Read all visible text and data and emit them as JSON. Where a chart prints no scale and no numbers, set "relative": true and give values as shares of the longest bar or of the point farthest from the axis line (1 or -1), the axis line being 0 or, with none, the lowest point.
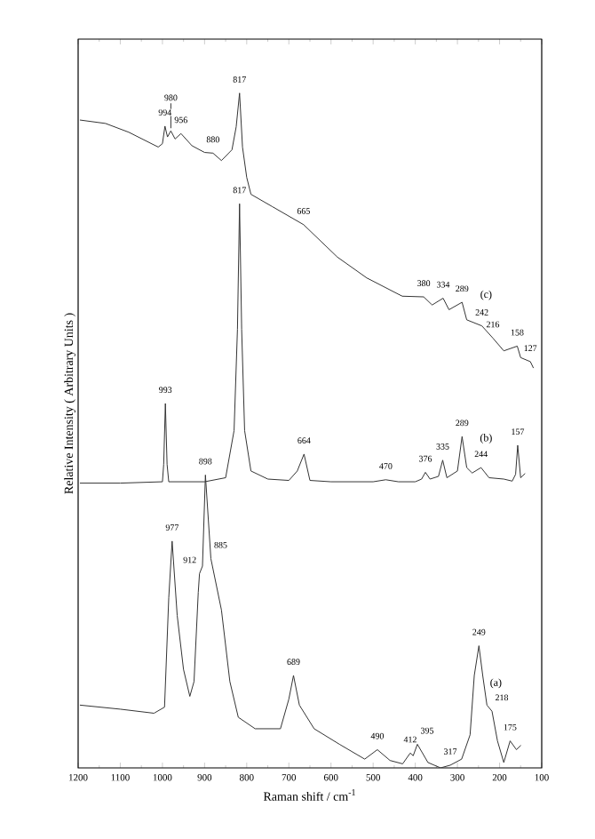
{
  "chart_data": {
    "type": "line",
    "relative": true,
    "xlabel": "Raman shift / cm$^{-1}$",
    "ylabel": "Relative Intensity ( Arbitrary Units )",
    "xlim": [
      1200,
      100
    ],
    "xticks": [
      1200,
      1100,
      1000,
      900,
      800,
      700,
      600,
      500,
      400,
      300,
      200,
      100
    ],
    "series": [
      {
        "name": "(c)",
        "color": "#333333",
        "x": [
          1195,
          1135,
          1080,
          1010,
          1000,
          994,
          988,
          980,
          970,
          956,
          930,
          900,
          880,
          860,
          835,
          825,
          817,
          810,
          800,
          790,
          740,
          665,
          585,
          515,
          431,
          380,
          360,
          334,
          320,
          289,
          278,
          242,
          216,
          190,
          158,
          150,
          127,
          120
        ],
        "values": [
          0.96,
          0.955,
          0.942,
          0.92,
          0.925,
          0.951,
          0.935,
          0.944,
          0.932,
          0.94,
          0.922,
          0.912,
          0.911,
          0.9,
          0.916,
          0.95,
          1.0,
          0.92,
          0.875,
          0.85,
          0.832,
          0.805,
          0.757,
          0.726,
          0.699,
          0.698,
          0.686,
          0.696,
          0.679,
          0.69,
          0.664,
          0.655,
          0.637,
          0.618,
          0.625,
          0.608,
          0.602,
          0.593
        ]
      },
      {
        "name": "(b)",
        "color": "#333333",
        "x": [
          1195,
          1100,
          1000,
          997,
          993,
          989,
          985,
          900,
          850,
          830,
          822,
          817,
          812,
          805,
          790,
          750,
          700,
          680,
          664,
          650,
          600,
          500,
          470,
          440,
          400,
          385,
          376,
          365,
          345,
          335,
          325,
          300,
          289,
          278,
          265,
          244,
          225,
          190,
          170,
          162,
          157,
          150,
          140
        ],
        "values": [
          0.422,
          0.422,
          0.424,
          0.45,
          0.54,
          0.45,
          0.424,
          0.424,
          0.43,
          0.5,
          0.65,
          0.836,
          0.65,
          0.5,
          0.44,
          0.428,
          0.426,
          0.44,
          0.465,
          0.426,
          0.424,
          0.424,
          0.427,
          0.424,
          0.424,
          0.428,
          0.438,
          0.428,
          0.432,
          0.456,
          0.43,
          0.44,
          0.491,
          0.445,
          0.437,
          0.445,
          0.43,
          0.428,
          0.425,
          0.435,
          0.478,
          0.43,
          0.436
        ]
      },
      {
        "name": "(a)",
        "color": "#333333",
        "x": [
          1195,
          1100,
          1020,
          995,
          985,
          977,
          965,
          950,
          935,
          925,
          915,
          912,
          905,
          898,
          885,
          860,
          840,
          820,
          780,
          720,
          700,
          689,
          675,
          640,
          580,
          520,
          490,
          460,
          430,
          412,
          405,
          395,
          370,
          340,
          317,
          290,
          270,
          260,
          249,
          240,
          230,
          218,
          205,
          190,
          175,
          160,
          150
        ],
        "values": [
          0.093,
          0.087,
          0.081,
          0.09,
          0.252,
          0.336,
          0.226,
          0.146,
          0.106,
          0.128,
          0.26,
          0.288,
          0.299,
          0.434,
          0.31,
          0.234,
          0.128,
          0.075,
          0.058,
          0.058,
          0.102,
          0.137,
          0.093,
          0.058,
          0.035,
          0.013,
          0.027,
          0.011,
          0.006,
          0.022,
          0.018,
          0.035,
          0.008,
          0.0,
          0.004,
          0.013,
          0.049,
          0.137,
          0.181,
          0.137,
          0.093,
          0.084,
          0.04,
          0.008,
          0.04,
          0.027,
          0.033
        ]
      }
    ],
    "annotations": [
      {
        "text": "994",
        "x": 994,
        "y": 0.951
      },
      {
        "text": "980",
        "x": 980,
        "y": 0.944
      },
      {
        "text": "956",
        "x": 956,
        "y": 0.94
      },
      {
        "text": "880",
        "x": 880,
        "y": 0.911
      },
      {
        "text": "817",
        "x": 817,
        "y": 1.0
      },
      {
        "text": "665",
        "x": 665,
        "y": 0.805
      },
      {
        "text": "380",
        "x": 380,
        "y": 0.698
      },
      {
        "text": "334",
        "x": 334,
        "y": 0.696
      },
      {
        "text": "289",
        "x": 289,
        "y": 0.69
      },
      {
        "text": "242",
        "x": 242,
        "y": 0.655
      },
      {
        "text": "216",
        "x": 216,
        "y": 0.637
      },
      {
        "text": "158",
        "x": 158,
        "y": 0.625
      },
      {
        "text": "127",
        "x": 127,
        "y": 0.602
      },
      {
        "text": "993",
        "x": 993,
        "y": 0.54
      },
      {
        "text": "817",
        "x": 817,
        "y": 0.836
      },
      {
        "text": "664",
        "x": 664,
        "y": 0.465
      },
      {
        "text": "470",
        "x": 470,
        "y": 0.427
      },
      {
        "text": "376",
        "x": 376,
        "y": 0.438
      },
      {
        "text": "335",
        "x": 335,
        "y": 0.456
      },
      {
        "text": "289",
        "x": 289,
        "y": 0.491
      },
      {
        "text": "244",
        "x": 244,
        "y": 0.445
      },
      {
        "text": "157",
        "x": 157,
        "y": 0.478
      },
      {
        "text": "977",
        "x": 977,
        "y": 0.336
      },
      {
        "text": "912",
        "x": 912,
        "y": 0.288
      },
      {
        "text": "898",
        "x": 898,
        "y": 0.434
      },
      {
        "text": "885",
        "x": 885,
        "y": 0.31
      },
      {
        "text": "689",
        "x": 689,
        "y": 0.137
      },
      {
        "text": "490",
        "x": 490,
        "y": 0.027
      },
      {
        "text": "412",
        "x": 412,
        "y": 0.022
      },
      {
        "text": "395",
        "x": 395,
        "y": 0.035
      },
      {
        "text": "317",
        "x": 317,
        "y": 0.004
      },
      {
        "text": "249",
        "x": 249,
        "y": 0.181
      },
      {
        "text": "218",
        "x": 218,
        "y": 0.084
      },
      {
        "text": "175",
        "x": 175,
        "y": 0.04
      }
    ]
  }
}
